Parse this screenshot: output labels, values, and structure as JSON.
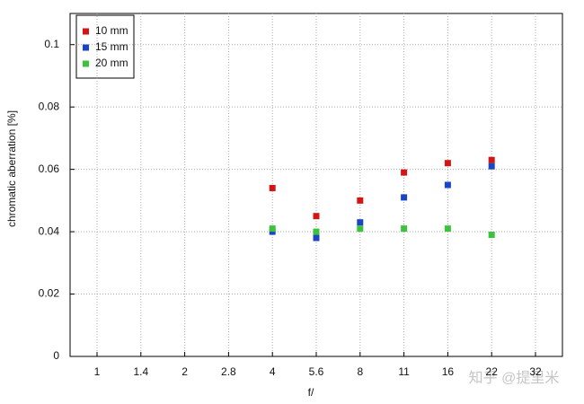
{
  "chart_data": {
    "type": "scatter",
    "x_label": "f/",
    "y_label": "chromatic aberration [%]",
    "categories": [
      "1",
      "1.4",
      "2",
      "2.8",
      "4",
      "5.6",
      "8",
      "11",
      "16",
      "22",
      "32"
    ],
    "series": [
      {
        "name": "10 mm",
        "color": "#d41515",
        "values": [
          null,
          null,
          null,
          null,
          0.054,
          0.045,
          0.05,
          0.059,
          0.062,
          0.063,
          null
        ]
      },
      {
        "name": "15 mm",
        "color": "#1a46c4",
        "values": [
          null,
          null,
          null,
          null,
          0.04,
          0.038,
          0.043,
          0.051,
          0.055,
          0.061,
          null
        ]
      },
      {
        "name": "20 mm",
        "color": "#3cc23c",
        "values": [
          null,
          null,
          null,
          null,
          0.041,
          0.04,
          0.041,
          0.041,
          0.041,
          0.039,
          null
        ]
      }
    ],
    "ylim": [
      0,
      0.11
    ],
    "yticks": [
      0,
      0.02,
      0.04,
      0.06,
      0.08,
      0.1
    ],
    "grid": true,
    "legend": "upper-left",
    "watermark": "知乎 @提里米"
  }
}
